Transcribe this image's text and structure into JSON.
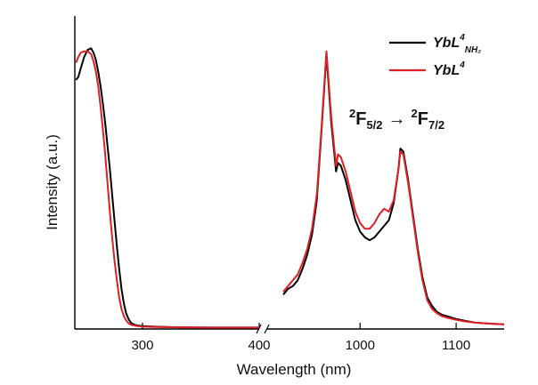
{
  "chart_data": {
    "type": "line",
    "xlabel": "Wavelength (nm)",
    "ylabel": "Intensity (a.u.)",
    "x_ticks": [
      "300",
      "400",
      "1000",
      "1100"
    ],
    "broken_x_axis": true,
    "yticks_shown": false,
    "grid": false,
    "legend_position": "top-right",
    "legend": [
      {
        "label_base": "YbL",
        "label_sup": "4",
        "label_sub": "NH₂",
        "color": "#000000"
      },
      {
        "label_base": "YbL",
        "label_sup": "4",
        "label_sub": "",
        "color": "#dd1f26"
      }
    ],
    "annotation": {
      "left_level": "2",
      "left_term": "F",
      "left_sub": "5/2",
      "arrow": "→",
      "right_level": "2",
      "right_term": "F",
      "right_sub": "7/2"
    },
    "segments": {
      "left": {
        "xlim": [
          242,
          400
        ],
        "note": "absorption region"
      },
      "right": {
        "xlim": [
          920,
          1150
        ],
        "note": "emission region"
      }
    },
    "series": [
      {
        "name": "YbL4NH2",
        "color": "#000000",
        "left": {
          "x": [
            243,
            245,
            247,
            250,
            253,
            256,
            258,
            260,
            262,
            264,
            266,
            268,
            270,
            272,
            274,
            276,
            278,
            280,
            282,
            284,
            286,
            288,
            290,
            293,
            296,
            300,
            310,
            330,
            360,
            400
          ],
          "y": [
            0.87,
            0.88,
            0.91,
            0.95,
            0.975,
            0.98,
            0.965,
            0.94,
            0.9,
            0.85,
            0.79,
            0.72,
            0.64,
            0.56,
            0.47,
            0.38,
            0.29,
            0.21,
            0.14,
            0.09,
            0.055,
            0.035,
            0.022,
            0.015,
            0.012,
            0.01,
            0.008,
            0.006,
            0.005,
            0.005
          ]
        },
        "right": {
          "x": [
            920,
            925,
            930,
            935,
            940,
            945,
            950,
            955,
            960,
            965,
            970,
            975,
            977,
            980,
            985,
            990,
            995,
            1000,
            1005,
            1010,
            1015,
            1020,
            1025,
            1030,
            1035,
            1040,
            1042,
            1045,
            1050,
            1055,
            1060,
            1065,
            1070,
            1075,
            1080,
            1085,
            1090,
            1100,
            1110,
            1120,
            1130,
            1140,
            1150
          ],
          "y": [
            0.12,
            0.14,
            0.15,
            0.17,
            0.21,
            0.26,
            0.33,
            0.45,
            0.7,
            0.96,
            0.72,
            0.55,
            0.58,
            0.57,
            0.52,
            0.45,
            0.38,
            0.34,
            0.32,
            0.31,
            0.32,
            0.34,
            0.36,
            0.38,
            0.44,
            0.56,
            0.63,
            0.62,
            0.52,
            0.4,
            0.28,
            0.18,
            0.11,
            0.08,
            0.06,
            0.05,
            0.045,
            0.035,
            0.028,
            0.022,
            0.02,
            0.018,
            0.016
          ]
        }
      },
      {
        "name": "YbL4",
        "color": "#dd1f26",
        "left": {
          "x": [
            243,
            245,
            247,
            250,
            253,
            256,
            258,
            260,
            262,
            264,
            266,
            268,
            270,
            272,
            274,
            276,
            278,
            280,
            282,
            284,
            286,
            288,
            290,
            293,
            296,
            300,
            310,
            330,
            360,
            400
          ],
          "y": [
            0.93,
            0.95,
            0.965,
            0.97,
            0.97,
            0.96,
            0.935,
            0.9,
            0.85,
            0.78,
            0.7,
            0.61,
            0.51,
            0.41,
            0.32,
            0.24,
            0.17,
            0.11,
            0.07,
            0.045,
            0.03,
            0.02,
            0.015,
            0.012,
            0.01,
            0.008,
            0.007,
            0.006,
            0.005,
            0.005
          ]
        },
        "right": {
          "x": [
            920,
            925,
            930,
            935,
            940,
            945,
            950,
            955,
            960,
            965,
            970,
            975,
            977,
            980,
            985,
            990,
            995,
            1000,
            1005,
            1010,
            1015,
            1020,
            1025,
            1030,
            1035,
            1040,
            1042,
            1045,
            1050,
            1055,
            1060,
            1065,
            1070,
            1075,
            1080,
            1085,
            1090,
            1100,
            1110,
            1120,
            1130,
            1140,
            1150
          ],
          "y": [
            0.13,
            0.15,
            0.17,
            0.19,
            0.23,
            0.28,
            0.35,
            0.47,
            0.71,
            0.97,
            0.74,
            0.57,
            0.61,
            0.6,
            0.55,
            0.48,
            0.41,
            0.37,
            0.35,
            0.35,
            0.37,
            0.4,
            0.42,
            0.41,
            0.45,
            0.56,
            0.62,
            0.61,
            0.51,
            0.39,
            0.27,
            0.17,
            0.1,
            0.07,
            0.055,
            0.045,
            0.04,
            0.032,
            0.026,
            0.022,
            0.02,
            0.018,
            0.016
          ]
        }
      }
    ]
  }
}
